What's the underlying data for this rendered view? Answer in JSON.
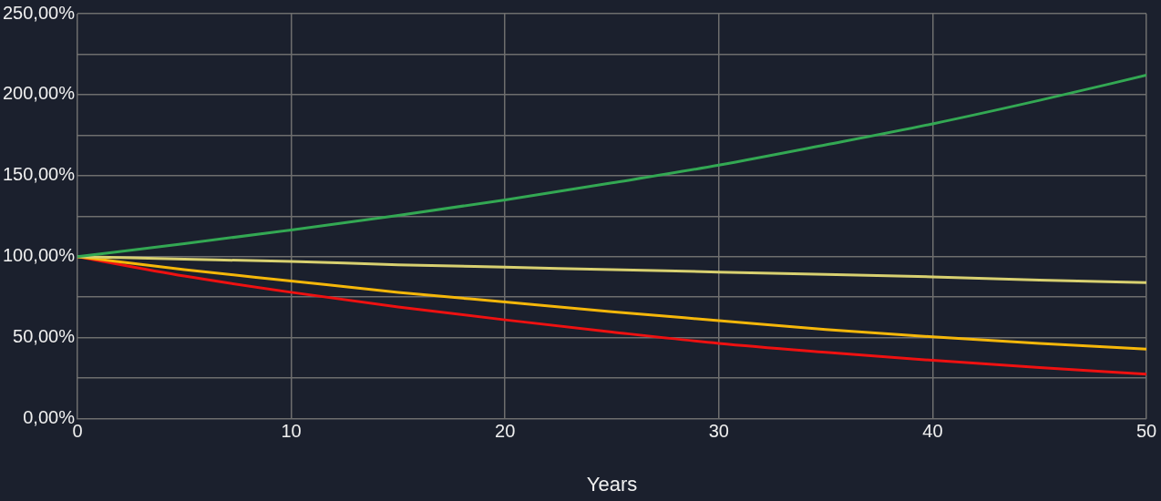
{
  "chart_data": {
    "type": "line",
    "xlabel": "Years",
    "x": [
      0,
      5,
      10,
      15,
      20,
      25,
      30,
      35,
      40,
      45,
      50
    ],
    "series": [
      {
        "color": "#33a853",
        "values": [
          100,
          108,
          116.5,
          125.5,
          135,
          145.5,
          156.5,
          169,
          182,
          196.5,
          212
        ]
      },
      {
        "color": "#d8d070",
        "values": [
          100,
          98.5,
          97,
          95,
          93.5,
          92,
          90.5,
          89,
          87.5,
          85.5,
          84
        ]
      },
      {
        "color": "#f5b70a",
        "values": [
          100,
          92,
          85,
          78,
          72,
          66,
          60.5,
          55,
          50.5,
          46.5,
          43
        ]
      },
      {
        "color": "#ee1111",
        "values": [
          100,
          88,
          78,
          69,
          61,
          53.5,
          46.5,
          41,
          36,
          31.5,
          27.5
        ]
      }
    ],
    "xlim": [
      0,
      50
    ],
    "xticks": [
      0,
      10,
      20,
      30,
      40,
      50
    ],
    "ylim": [
      0,
      250
    ],
    "yticks": [
      {
        "value": 0,
        "label": "0,00%"
      },
      {
        "value": 25,
        "label": null
      },
      {
        "value": 50,
        "label": "50,00%"
      },
      {
        "value": 75,
        "label": null
      },
      {
        "value": 100,
        "label": "100,00%"
      },
      {
        "value": 125,
        "label": null
      },
      {
        "value": 150,
        "label": "150,00%"
      },
      {
        "value": 175,
        "label": null
      },
      {
        "value": 200,
        "label": "200,00%"
      },
      {
        "value": 225,
        "label": null
      },
      {
        "value": 250,
        "label": "250,00%"
      }
    ],
    "grid": true,
    "legend": false,
    "marker": "none",
    "line_style": "solid"
  }
}
